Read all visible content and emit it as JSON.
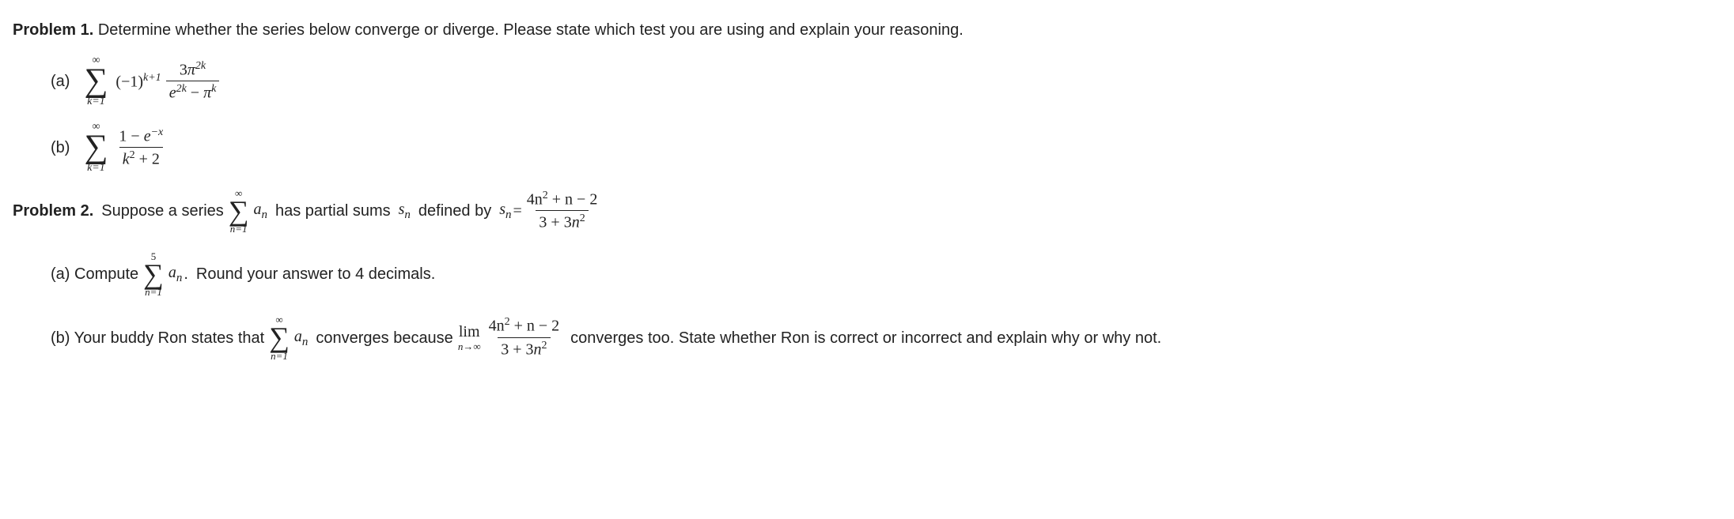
{
  "p1": {
    "label": "Problem 1.",
    "prompt": "Determine whether the series below converge or diverge. Please state which test you are using and explain your reasoning.",
    "a": {
      "label": "(a)",
      "sum_upper": "∞",
      "sum_lower": "k=1",
      "term_left_base": "(−1)",
      "term_left_exp": "k+1",
      "frac_num_coeff": "3",
      "frac_num_base": "π",
      "frac_num_exp": "2k",
      "frac_den_left_base": "e",
      "frac_den_left_exp": "2k",
      "frac_den_op": " − ",
      "frac_den_right_base": "π",
      "frac_den_right_exp": "k"
    },
    "b": {
      "label": "(b)",
      "sum_upper": "∞",
      "sum_lower": "k=1",
      "frac_num_left": "1 − ",
      "frac_num_e": "e",
      "frac_num_exp": "−x",
      "frac_den_k": "k",
      "frac_den_exp": "2",
      "frac_den_tail": " + 2"
    }
  },
  "p2": {
    "label": "Problem 2.",
    "intro1": "Suppose a series",
    "sum_upper": "∞",
    "sum_lower": "n=1",
    "an": "a",
    "an_sub": "n",
    "intro2": "has partial sums",
    "sn": "s",
    "sn_sub": "n",
    "intro3": "defined by",
    "eq": " = ",
    "frac_num": "4n",
    "frac_num_exp": "2",
    "frac_num_tail": " + n − 2",
    "frac_den_lead": "3 + 3",
    "frac_den_n": "n",
    "frac_den_exp": "2",
    "a": {
      "label": "(a) Compute",
      "sum_upper": "5",
      "sum_lower": "n=1",
      "term": "a",
      "term_sub": "n",
      "dot": ".",
      "tail": "Round your answer to 4 decimals."
    },
    "b": {
      "label": "(b) Your buddy Ron states that",
      "sum_upper": "∞",
      "sum_lower": "n=1",
      "term": "a",
      "term_sub": "n",
      "mid": "converges because",
      "lim_word": "lim",
      "lim_sub": "n→∞",
      "frac_num": "4n",
      "frac_num_exp": "2",
      "frac_num_tail": " + n − 2",
      "frac_den_lead": "3 + 3",
      "frac_den_n": "n",
      "frac_den_exp": "2",
      "tail": "converges too. State whether Ron is correct or incorrect and explain why or why not."
    }
  }
}
